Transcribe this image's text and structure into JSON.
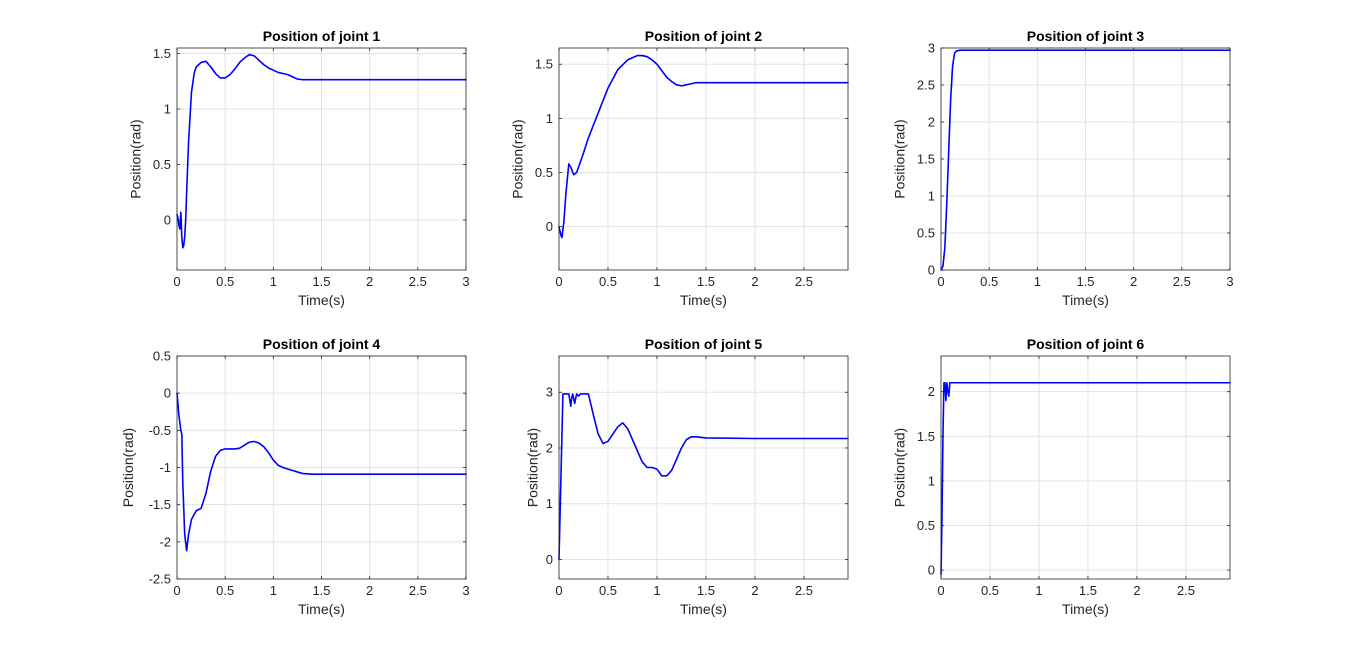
{
  "chart_data": [
    {
      "type": "line",
      "title": "Position of joint 1",
      "xlabel": "Time(s)",
      "ylabel": "Position(rad)",
      "xlim": [
        0,
        3
      ],
      "ylim": [
        -0.45,
        1.55
      ],
      "xticks": [
        0,
        0.5,
        1,
        1.5,
        2,
        2.5,
        3
      ],
      "xtick_labels": [
        "0",
        "0.5",
        "1",
        "1.5",
        "2",
        "2.5",
        "3"
      ],
      "yticks": [
        0,
        0.5,
        1,
        1.5
      ],
      "ytick_labels": [
        "0",
        "0.5",
        "1",
        "1.5"
      ],
      "grid": true,
      "color": "#0000ff",
      "series": [
        {
          "x": [
            0,
            0.01,
            0.02,
            0.03,
            0.04,
            0.05,
            0.06,
            0.07,
            0.08,
            0.09,
            0.1,
            0.12,
            0.15,
            0.18,
            0.2,
            0.25,
            0.3,
            0.35,
            0.4,
            0.45,
            0.5,
            0.55,
            0.6,
            0.65,
            0.7,
            0.75,
            0.8,
            0.85,
            0.9,
            0.95,
            1.0,
            1.05,
            1.1,
            1.15,
            1.2,
            1.25,
            1.3,
            1.35,
            1.5,
            2.0,
            2.5,
            3.0
          ],
          "y": [
            0.05,
            0.02,
            -0.05,
            -0.08,
            0.07,
            -0.15,
            -0.25,
            -0.23,
            -0.15,
            0.0,
            0.25,
            0.7,
            1.15,
            1.33,
            1.38,
            1.42,
            1.43,
            1.38,
            1.32,
            1.28,
            1.28,
            1.31,
            1.36,
            1.42,
            1.46,
            1.49,
            1.48,
            1.44,
            1.4,
            1.37,
            1.35,
            1.33,
            1.32,
            1.31,
            1.29,
            1.27,
            1.265,
            1.265,
            1.265,
            1.265,
            1.265,
            1.265
          ]
        }
      ]
    },
    {
      "type": "line",
      "title": "Position of joint 2",
      "xlabel": "Time(s)",
      "ylabel": "Position(rad)",
      "xlim": [
        0,
        2.95
      ],
      "ylim": [
        -0.4,
        1.65
      ],
      "xticks": [
        0,
        0.5,
        1,
        1.5,
        2,
        2.5
      ],
      "xtick_labels": [
        "0",
        "0.5",
        "1",
        "1.5",
        "2",
        "2.5"
      ],
      "yticks": [
        0,
        0.5,
        1,
        1.5
      ],
      "ytick_labels": [
        "0",
        "0.5",
        "1",
        "1.5"
      ],
      "grid": true,
      "color": "#0000ff",
      "series": [
        {
          "x": [
            0,
            0.02,
            0.03,
            0.05,
            0.07,
            0.1,
            0.12,
            0.15,
            0.18,
            0.2,
            0.25,
            0.3,
            0.4,
            0.5,
            0.6,
            0.7,
            0.8,
            0.85,
            0.9,
            0.95,
            1.0,
            1.05,
            1.1,
            1.15,
            1.2,
            1.25,
            1.3,
            1.35,
            1.4,
            1.5,
            2.0,
            2.5,
            2.95
          ],
          "y": [
            0.0,
            -0.08,
            -0.1,
            0.05,
            0.3,
            0.58,
            0.55,
            0.48,
            0.5,
            0.55,
            0.68,
            0.82,
            1.05,
            1.28,
            1.45,
            1.54,
            1.58,
            1.58,
            1.57,
            1.54,
            1.5,
            1.44,
            1.38,
            1.34,
            1.31,
            1.3,
            1.31,
            1.32,
            1.33,
            1.33,
            1.33,
            1.33,
            1.33
          ]
        }
      ]
    },
    {
      "type": "line",
      "title": "Position of joint 3",
      "xlabel": "Time(s)",
      "ylabel": "Position(rad)",
      "xlim": [
        0,
        3
      ],
      "ylim": [
        0,
        3
      ],
      "xticks": [
        0,
        0.5,
        1,
        1.5,
        2,
        2.5,
        3
      ],
      "xtick_labels": [
        "0",
        "0.5",
        "1",
        "1.5",
        "2",
        "2.5",
        "3"
      ],
      "yticks": [
        0,
        0.5,
        1,
        1.5,
        2,
        2.5,
        3
      ],
      "ytick_labels": [
        "0",
        "0.5",
        "1",
        "1.5",
        "2",
        "2.5",
        "3"
      ],
      "grid": true,
      "color": "#0000ff",
      "series": [
        {
          "x": [
            0,
            0.02,
            0.04,
            0.06,
            0.08,
            0.1,
            0.12,
            0.14,
            0.16,
            0.2,
            0.3,
            1.0,
            2.0,
            3.0
          ],
          "y": [
            0.0,
            0.05,
            0.3,
            0.9,
            1.6,
            2.3,
            2.75,
            2.93,
            2.96,
            2.97,
            2.97,
            2.97,
            2.97,
            2.97
          ]
        }
      ]
    },
    {
      "type": "line",
      "title": "Position of joint 4",
      "xlabel": "Time(s)",
      "ylabel": "Position(rad)",
      "xlim": [
        0,
        3
      ],
      "ylim": [
        -2.5,
        0.5
      ],
      "xticks": [
        0,
        0.5,
        1,
        1.5,
        2,
        2.5,
        3
      ],
      "xtick_labels": [
        "0",
        "0.5",
        "1",
        "1.5",
        "2",
        "2.5",
        "3"
      ],
      "yticks": [
        -2.5,
        -2,
        -1.5,
        -1,
        -0.5,
        0,
        0.5
      ],
      "ytick_labels": [
        "-2.5",
        "-2",
        "-1.5",
        "-1",
        "-0.5",
        "0",
        "0.5"
      ],
      "grid": true,
      "color": "#0000ff",
      "series": [
        {
          "x": [
            0,
            0.02,
            0.04,
            0.05,
            0.06,
            0.08,
            0.1,
            0.12,
            0.15,
            0.2,
            0.25,
            0.3,
            0.35,
            0.4,
            0.45,
            0.5,
            0.6,
            0.65,
            0.7,
            0.75,
            0.8,
            0.85,
            0.9,
            0.95,
            1.0,
            1.05,
            1.1,
            1.2,
            1.3,
            1.4,
            2.0,
            3.0
          ],
          "y": [
            0.0,
            -0.3,
            -0.5,
            -0.55,
            -1.2,
            -1.9,
            -2.12,
            -1.9,
            -1.7,
            -1.58,
            -1.55,
            -1.35,
            -1.05,
            -0.85,
            -0.77,
            -0.75,
            -0.75,
            -0.74,
            -0.7,
            -0.66,
            -0.65,
            -0.67,
            -0.72,
            -0.8,
            -0.9,
            -0.97,
            -1.0,
            -1.04,
            -1.08,
            -1.09,
            -1.09,
            -1.09
          ]
        }
      ]
    },
    {
      "type": "line",
      "title": "Position of joint 5",
      "xlabel": "Time(s)",
      "ylabel": "Position(rad)",
      "xlim": [
        0,
        2.95
      ],
      "ylim": [
        -0.35,
        3.65
      ],
      "xticks": [
        0,
        0.5,
        1,
        1.5,
        2,
        2.5
      ],
      "xtick_labels": [
        "0",
        "0.5",
        "1",
        "1.5",
        "2",
        "2.5"
      ],
      "yticks": [
        0,
        1,
        2,
        3
      ],
      "ytick_labels": [
        "0",
        "1",
        "2",
        "3"
      ],
      "grid": true,
      "color": "#0000ff",
      "series": [
        {
          "x": [
            0,
            0.02,
            0.04,
            0.06,
            0.08,
            0.1,
            0.12,
            0.13,
            0.14,
            0.16,
            0.18,
            0.2,
            0.22,
            0.25,
            0.3,
            0.35,
            0.4,
            0.45,
            0.5,
            0.55,
            0.6,
            0.65,
            0.7,
            0.75,
            0.8,
            0.85,
            0.9,
            0.95,
            1.0,
            1.05,
            1.1,
            1.15,
            1.2,
            1.25,
            1.3,
            1.35,
            1.4,
            1.5,
            2.0,
            2.5,
            2.95
          ],
          "y": [
            0.0,
            1.5,
            2.97,
            2.97,
            2.97,
            2.97,
            2.75,
            2.9,
            2.97,
            2.8,
            2.97,
            2.93,
            2.97,
            2.97,
            2.97,
            2.6,
            2.25,
            2.08,
            2.12,
            2.25,
            2.38,
            2.45,
            2.35,
            2.15,
            1.95,
            1.75,
            1.65,
            1.65,
            1.62,
            1.5,
            1.5,
            1.6,
            1.8,
            2.0,
            2.15,
            2.2,
            2.2,
            2.18,
            2.17,
            2.17,
            2.17
          ]
        }
      ]
    },
    {
      "type": "line",
      "title": "Position of joint 6",
      "xlabel": "Time(s)",
      "ylabel": "Position(rad)",
      "xlim": [
        0,
        2.95
      ],
      "ylim": [
        -0.1,
        2.4
      ],
      "xticks": [
        0,
        0.5,
        1,
        1.5,
        2,
        2.5
      ],
      "xtick_labels": [
        "0",
        "0.5",
        "1",
        "1.5",
        "2",
        "2.5"
      ],
      "yticks": [
        0,
        0.5,
        1,
        1.5,
        2
      ],
      "ytick_labels": [
        "0",
        "0.5",
        "1",
        "1.5",
        "2"
      ],
      "grid": true,
      "color": "#0000ff",
      "series": [
        {
          "x": [
            0,
            0.01,
            0.02,
            0.03,
            0.04,
            0.05,
            0.06,
            0.07,
            0.08,
            0.09,
            0.1,
            0.15,
            0.5,
            1.0,
            2.0,
            2.95
          ],
          "y": [
            -0.05,
            0.6,
            1.5,
            2.1,
            2.1,
            1.9,
            2.1,
            2.0,
            1.95,
            2.1,
            2.1,
            2.1,
            2.1,
            2.1,
            2.1,
            2.1
          ]
        }
      ]
    }
  ]
}
